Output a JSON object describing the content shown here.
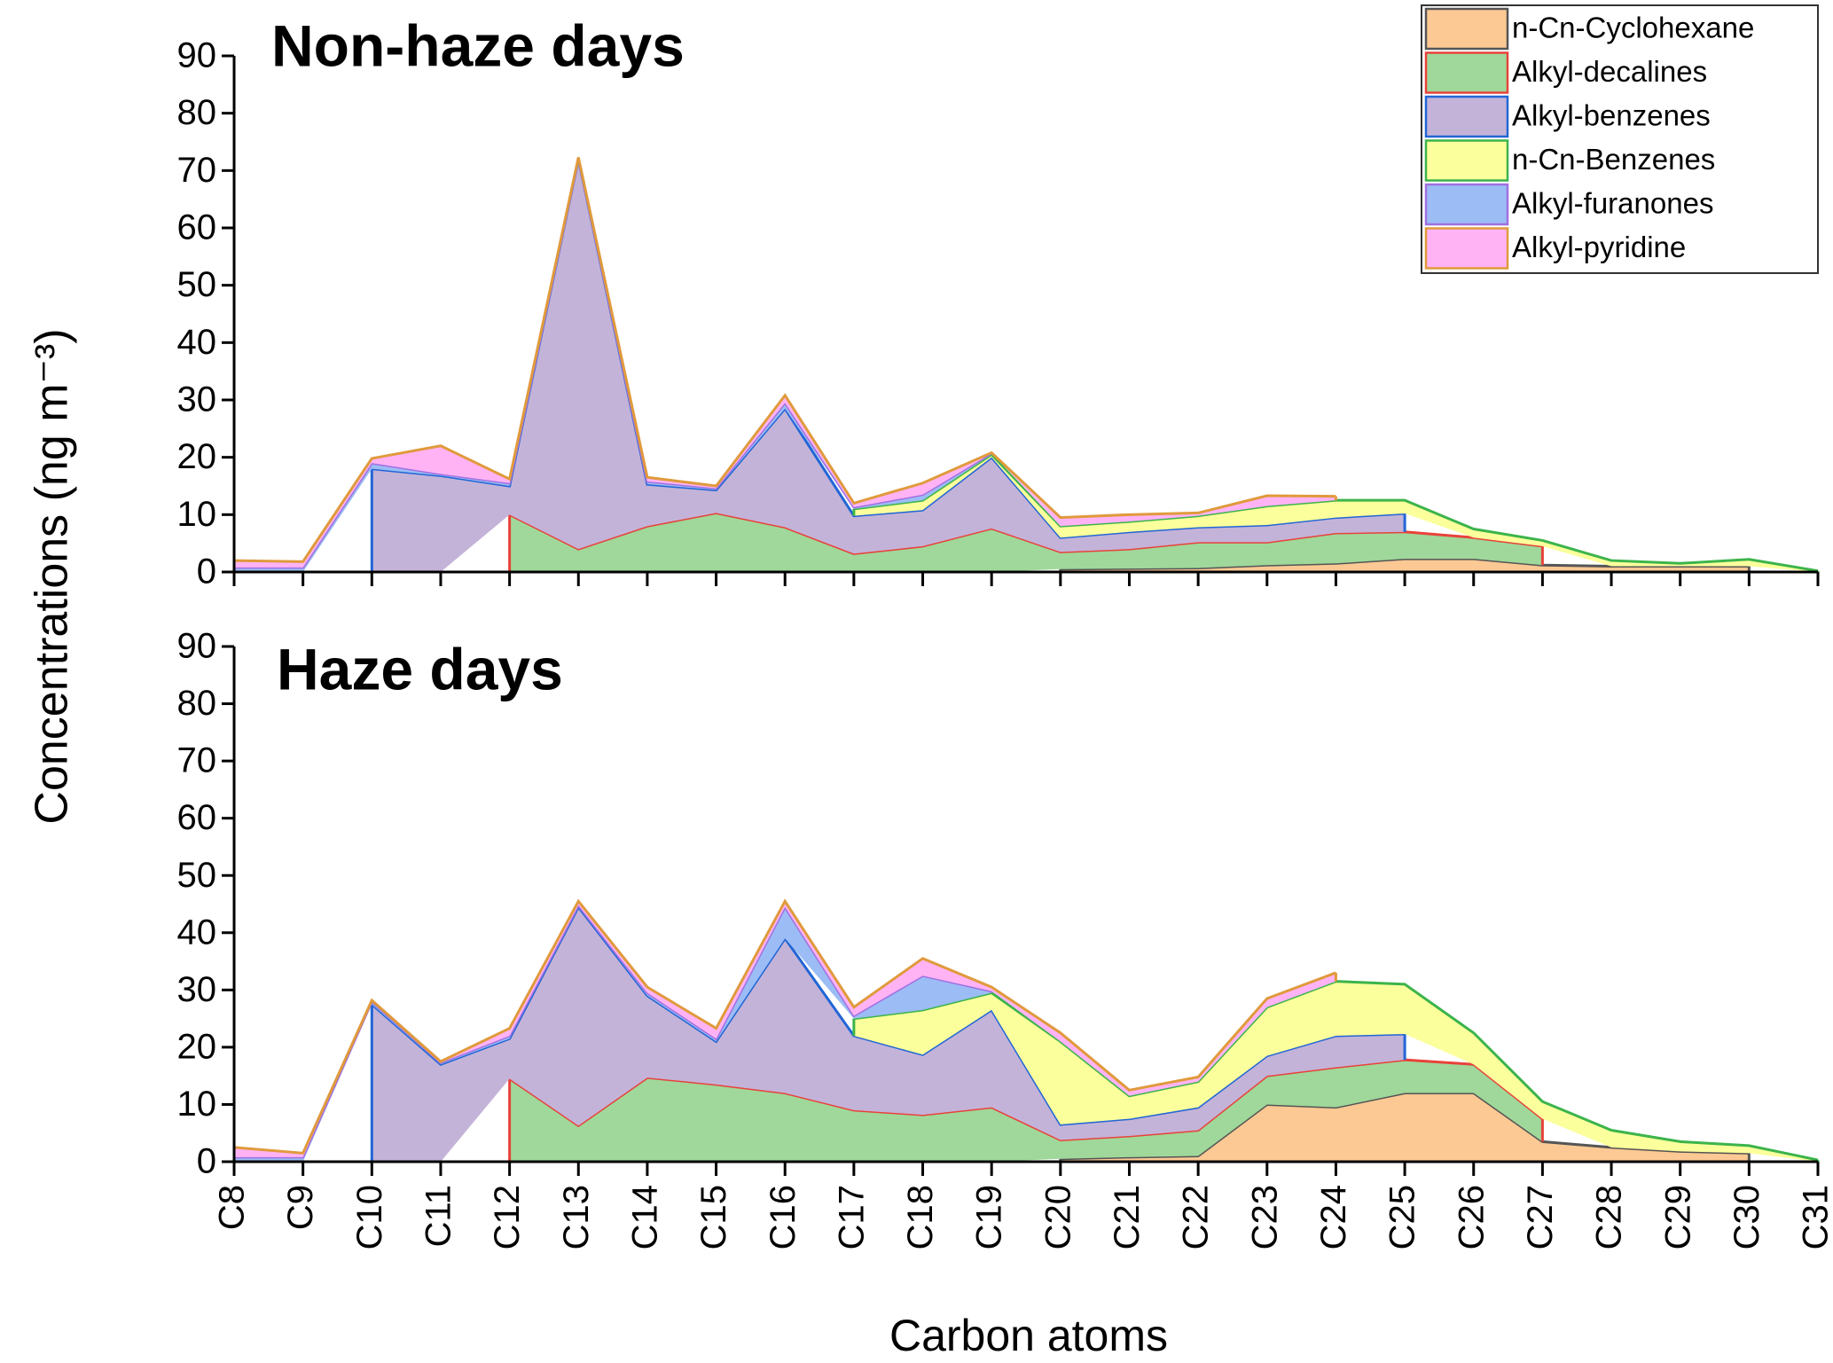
{
  "chart_data": [
    {
      "type": "area",
      "title": "Non-haze days",
      "ylabel": "Concentrations (ng m⁻³)",
      "ylim": [
        0,
        90
      ],
      "yticks": [
        0,
        10,
        20,
        30,
        40,
        50,
        60,
        70,
        80,
        90
      ],
      "series": [
        {
          "name": "n-Cn-Cyclohexane",
          "color": "#fcc994",
          "edge": "#555555",
          "values": [
            null,
            null,
            null,
            null,
            null,
            null,
            null,
            null,
            null,
            null,
            null,
            null,
            0.5,
            0.6,
            0.7,
            1.2,
            1.5,
            2.3,
            2.3,
            1.2,
            1,
            1,
            1,
            null
          ]
        },
        {
          "name": "Alkyl-decalines",
          "color": "#9fd89a",
          "edge": "#e8423a",
          "values": [
            null,
            null,
            null,
            null,
            10,
            4,
            8,
            10.3,
            7.8,
            3.2,
            4.5,
            7.6,
            3.0,
            3.4,
            4.5,
            4.0,
            5.3,
            4.7,
            3.7,
            3.3,
            null,
            null,
            null,
            null
          ]
        },
        {
          "name": "Alkyl-benzenes",
          "color": "#c4b3d8",
          "edge": "#2166d6",
          "values": [
            null,
            null,
            18,
            16.8,
            5,
            68,
            7.3,
            4,
            20.7,
            6.6,
            6.3,
            12.4,
            2.5,
            3,
            2.6,
            3,
            2.7,
            3.2,
            null,
            null,
            null,
            null,
            null,
            null
          ]
        },
        {
          "name": "n-Cn-Benzenes",
          "color": "#fbff9c",
          "edge": "#3cb44b",
          "values": [
            null,
            null,
            null,
            null,
            null,
            null,
            null,
            null,
            null,
            1.2,
            1.7,
            0.5,
            2,
            1.8,
            2,
            3.3,
            3,
            2.3,
            1.5,
            1,
            1,
            0.5,
            1.2,
            0.2
          ]
        },
        {
          "name": "Alkyl-furanones",
          "color": "#9bbcf5",
          "edge": "#a070e0",
          "values": [
            0.8,
            0.8,
            1,
            0.3,
            0.5,
            0.1,
            0.5,
            0.3,
            1,
            0.3,
            1,
            0.2,
            null,
            null,
            null,
            null,
            null,
            null,
            null,
            null,
            null,
            null,
            null,
            null
          ]
        },
        {
          "name": "Alkyl-pyridine",
          "color": "#ffb3f5",
          "edge": "#e09a3c",
          "values": [
            1.2,
            1.0,
            0.8,
            4.9,
            0.7,
            0.2,
            0.7,
            0.4,
            1.3,
            0.7,
            2,
            0.1,
            1.5,
            1.2,
            0.5,
            1.8,
            0.7,
            null,
            null,
            null,
            null,
            null,
            null,
            null
          ]
        }
      ]
    },
    {
      "type": "area",
      "title": "Haze days",
      "xlabel": "Carbon atoms",
      "categories": [
        "C8",
        "C9",
        "C10",
        "C11",
        "C12",
        "C13",
        "C14",
        "C15",
        "C16",
        "C17",
        "C18",
        "C19",
        "C20",
        "C21",
        "C22",
        "C23",
        "C24",
        "C25",
        "C26",
        "C27",
        "C28",
        "C29",
        "C30",
        "C31"
      ],
      "ylim": [
        0,
        90
      ],
      "yticks": [
        0,
        10,
        20,
        30,
        40,
        50,
        60,
        70,
        80,
        90
      ],
      "series": [
        {
          "color": "#fcc994",
          "edge": "#555555",
          "values": [
            null,
            null,
            null,
            null,
            null,
            null,
            null,
            null,
            null,
            null,
            null,
            null,
            0.5,
            0.8,
            1,
            10,
            9.5,
            12,
            12,
            3.5,
            2.5,
            1.8,
            1.5,
            null
          ]
        },
        {
          "color": "#9fd89a",
          "edge": "#e8423a",
          "values": [
            null,
            null,
            null,
            null,
            14.5,
            6.3,
            14.7,
            13.5,
            12,
            9,
            8.2,
            9.5,
            3.3,
            3.7,
            4.5,
            5,
            7,
            5.8,
            5,
            4,
            null,
            null,
            null,
            null
          ]
        },
        {
          "color": "#c4b3d8",
          "edge": "#2166d6",
          "values": [
            null,
            null,
            27.5,
            17,
            7,
            38.2,
            14.3,
            7.5,
            27,
            13,
            10.5,
            17,
            2.7,
            3,
            4,
            3.5,
            5.5,
            4.5,
            null,
            null,
            null,
            null,
            null,
            null
          ]
        },
        {
          "color": "#fbff9c",
          "edge": "#3cb44b",
          "values": [
            null,
            null,
            null,
            null,
            null,
            null,
            null,
            null,
            null,
            3,
            7.8,
            3,
            14.5,
            4,
            4.5,
            8.5,
            9.5,
            8.7,
            5.5,
            3,
            3,
            1.7,
            1.3,
            0.3
          ]
        },
        {
          "color": "#9bbcf5",
          "edge": "#a070e0",
          "values": [
            0.8,
            0.8,
            0.5,
            0.3,
            0.5,
            0.3,
            0.5,
            0.5,
            5.5,
            0.5,
            6,
            0.3,
            null,
            null,
            null,
            null,
            null,
            null,
            null,
            null,
            null,
            null,
            null,
            null
          ]
        },
        {
          "color": "#ffb3f5",
          "edge": "#e09a3c",
          "values": [
            1.7,
            0.7,
            0.2,
            0.2,
            1.3,
            0.7,
            1.0,
            1.8,
            1.0,
            1.5,
            3,
            0.7,
            1.5,
            1,
            0.8,
            1.5,
            1.5,
            null,
            null,
            null,
            null,
            null,
            null,
            null
          ]
        }
      ]
    }
  ]
}
